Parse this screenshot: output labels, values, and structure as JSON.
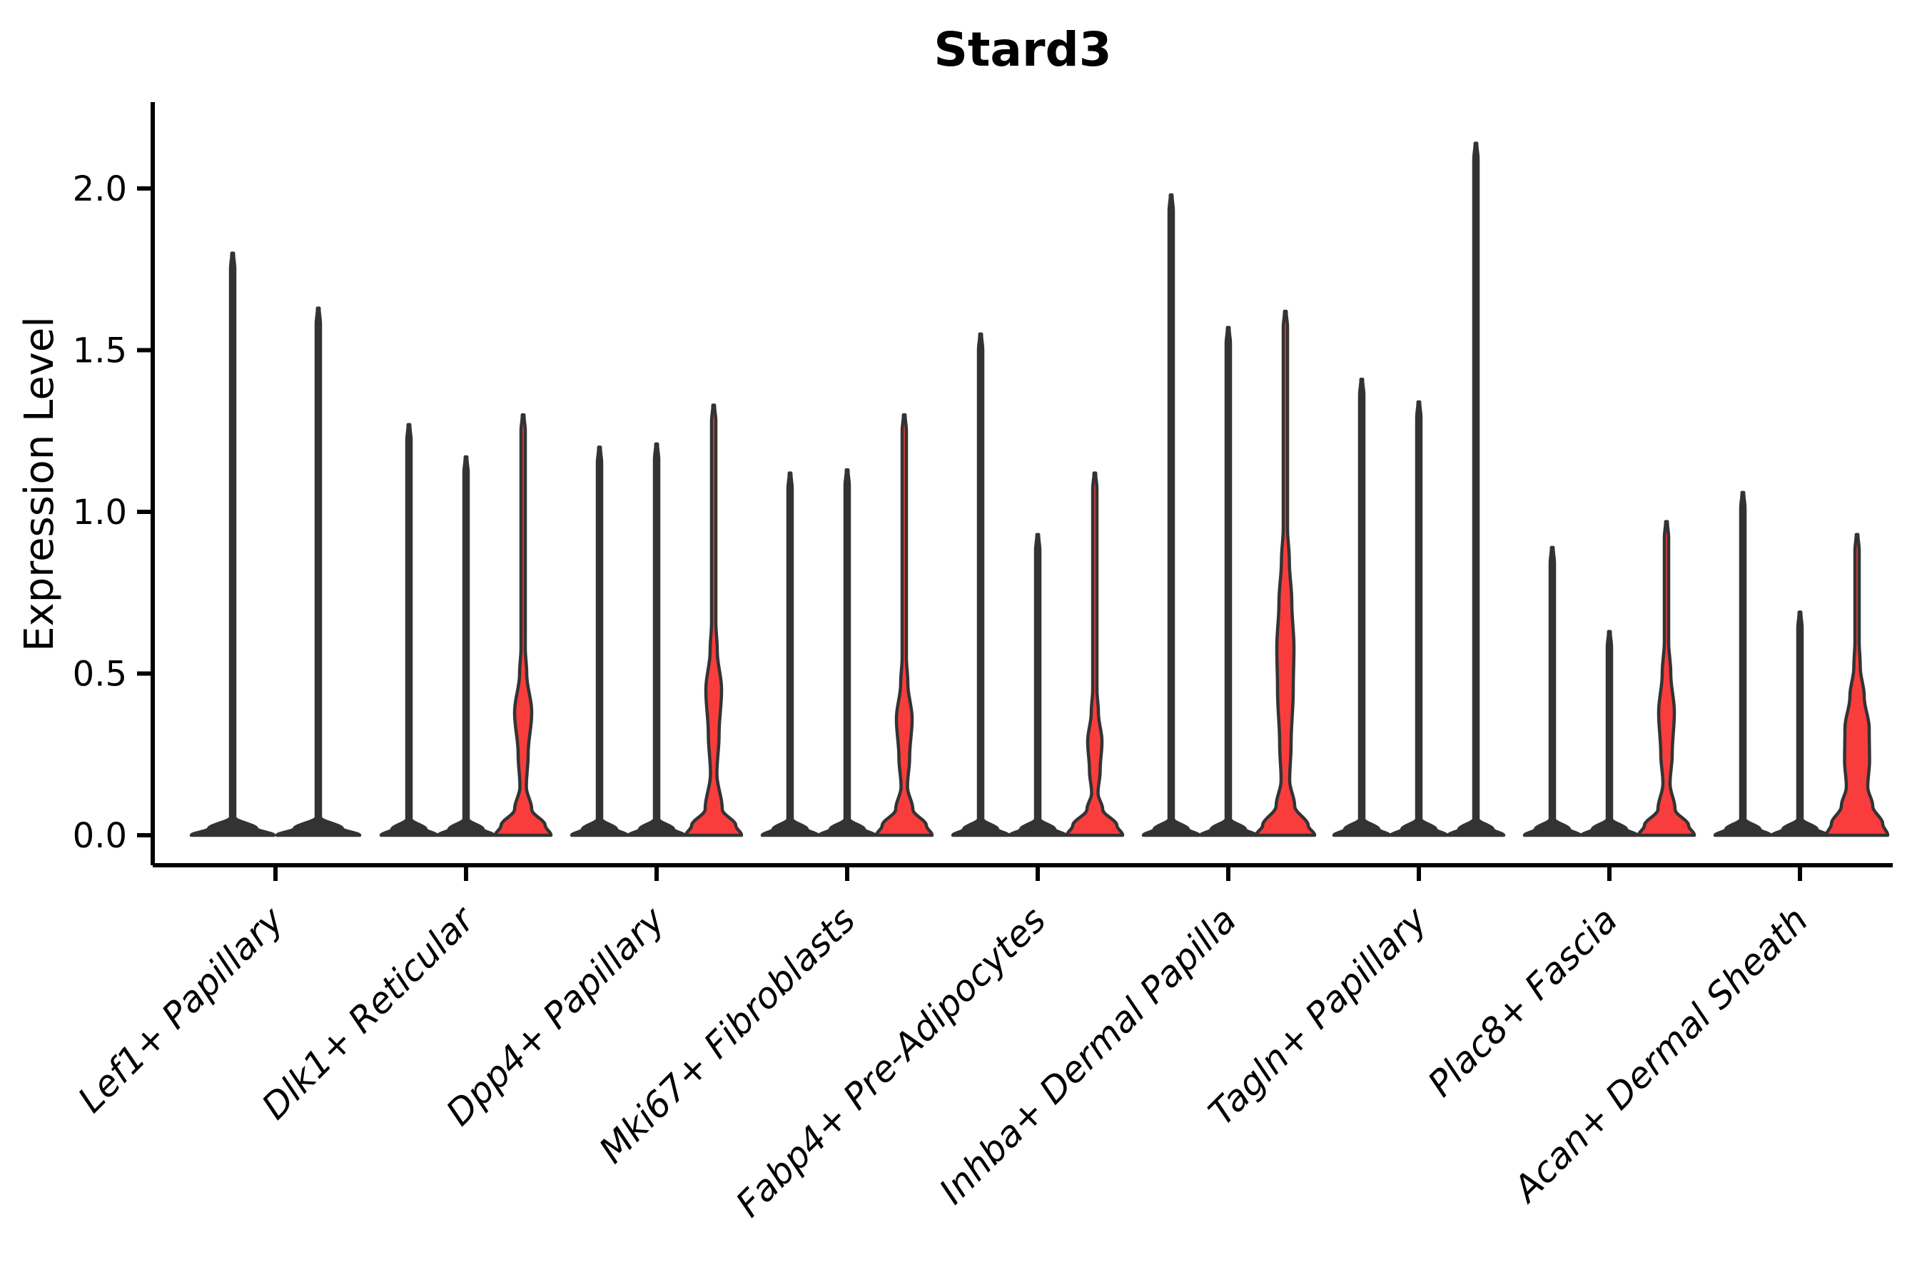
{
  "chart_data": {
    "type": "violin",
    "title": "Stard3",
    "ylabel": "Expression Level",
    "xlabel": "",
    "ylim": [
      -0.09,
      2.27
    ],
    "yticks": [
      "0.0",
      "0.5",
      "1.0",
      "1.5",
      "2.0"
    ],
    "ytick_values": [
      0.0,
      0.5,
      1.0,
      1.5,
      2.0
    ],
    "grid": false,
    "legend": null,
    "colors": {
      "violin_fill_red": "#f93d3d",
      "violin_edge": "#333333",
      "axis": "#000000",
      "background": "#ffffff"
    },
    "categories": [
      "Lef1+ Papillary",
      "Dlk1+ Reticular",
      "Dpp4+ Papillary",
      "Mki67+ Fibroblasts",
      "Fabp4+ Pre-Adipocytes",
      "Inhba+ Dermal Papilla",
      "Tagln+ Papillary",
      "Plac8+ Fascia",
      "Acan+ Dermal Sheath"
    ],
    "groups": [
      {
        "label": "Lef1+ Papillary",
        "violins": [
          {
            "top": 1.8,
            "fill": "dark",
            "outline": [
              [
                0,
                58
              ],
              [
                0.02,
                34
              ],
              [
                0.055,
                3
              ],
              [
                1.75,
                3
              ],
              [
                1.8,
                1.2
              ]
            ]
          },
          {
            "top": 1.63,
            "fill": "dark",
            "outline": [
              [
                0,
                58
              ],
              [
                0.02,
                34
              ],
              [
                0.055,
                3
              ],
              [
                1.58,
                3
              ],
              [
                1.63,
                1.2
              ]
            ]
          }
        ]
      },
      {
        "label": "Dlk1+ Reticular",
        "violins": [
          {
            "top": 1.27,
            "fill": "dark",
            "outline": [
              [
                0,
                39
              ],
              [
                0.018,
                24
              ],
              [
                0.05,
                3
              ],
              [
                1.22,
                3
              ],
              [
                1.27,
                1.2
              ]
            ]
          },
          {
            "top": 1.17,
            "fill": "dark",
            "outline": [
              [
                0,
                39
              ],
              [
                0.018,
                24
              ],
              [
                0.05,
                3
              ],
              [
                1.12,
                3
              ],
              [
                1.17,
                1.2
              ]
            ]
          },
          {
            "top": 1.3,
            "fill": "red",
            "outline": [
              [
                0,
                39
              ],
              [
                0.03,
                31
              ],
              [
                0.08,
                12
              ],
              [
                0.15,
                4.5
              ],
              [
                0.25,
                7
              ],
              [
                0.38,
                12
              ],
              [
                0.5,
                5
              ],
              [
                0.58,
                3
              ],
              [
                1.25,
                3
              ],
              [
                1.3,
                1.2
              ]
            ]
          }
        ]
      },
      {
        "label": "Dpp4+ Papillary",
        "violins": [
          {
            "top": 1.2,
            "fill": "dark",
            "outline": [
              [
                0,
                39
              ],
              [
                0.018,
                24
              ],
              [
                0.05,
                3
              ],
              [
                1.15,
                3
              ],
              [
                1.2,
                1.2
              ]
            ]
          },
          {
            "top": 1.21,
            "fill": "dark",
            "outline": [
              [
                0,
                39
              ],
              [
                0.018,
                24
              ],
              [
                0.05,
                3
              ],
              [
                1.16,
                3
              ],
              [
                1.21,
                1.2
              ]
            ]
          },
          {
            "top": 1.33,
            "fill": "red",
            "outline": [
              [
                0,
                39
              ],
              [
                0.03,
                31
              ],
              [
                0.08,
                12
              ],
              [
                0.19,
                4.5
              ],
              [
                0.31,
                7.5
              ],
              [
                0.45,
                11
              ],
              [
                0.57,
                5
              ],
              [
                0.66,
                3
              ],
              [
                1.28,
                3
              ],
              [
                1.33,
                1.2
              ]
            ]
          }
        ]
      },
      {
        "label": "Mki67+ Fibroblasts",
        "violins": [
          {
            "top": 1.12,
            "fill": "dark",
            "outline": [
              [
                0,
                39
              ],
              [
                0.018,
                24
              ],
              [
                0.05,
                3
              ],
              [
                1.07,
                3
              ],
              [
                1.12,
                1.2
              ]
            ]
          },
          {
            "top": 1.13,
            "fill": "dark",
            "outline": [
              [
                0,
                39
              ],
              [
                0.018,
                24
              ],
              [
                0.05,
                3
              ],
              [
                1.08,
                3
              ],
              [
                1.13,
                1.2
              ]
            ]
          },
          {
            "top": 1.3,
            "fill": "red",
            "outline": [
              [
                0,
                39
              ],
              [
                0.03,
                31
              ],
              [
                0.08,
                12
              ],
              [
                0.15,
                4.5
              ],
              [
                0.24,
                7.5
              ],
              [
                0.36,
                11
              ],
              [
                0.47,
                5
              ],
              [
                0.55,
                3
              ],
              [
                1.25,
                3
              ],
              [
                1.3,
                1.2
              ]
            ]
          }
        ]
      },
      {
        "label": "Fabp4+ Pre-Adipocytes",
        "violins": [
          {
            "top": 1.55,
            "fill": "dark",
            "outline": [
              [
                0,
                39
              ],
              [
                0.018,
                24
              ],
              [
                0.05,
                3
              ],
              [
                1.5,
                3
              ],
              [
                1.55,
                1.2
              ]
            ]
          },
          {
            "top": 0.93,
            "fill": "dark",
            "outline": [
              [
                0,
                39
              ],
              [
                0.018,
                24
              ],
              [
                0.05,
                3
              ],
              [
                0.88,
                3
              ],
              [
                0.93,
                1.2
              ]
            ]
          },
          {
            "top": 1.12,
            "fill": "red",
            "outline": [
              [
                0,
                39
              ],
              [
                0.03,
                31
              ],
              [
                0.08,
                11
              ],
              [
                0.13,
                4.5
              ],
              [
                0.2,
                7.5
              ],
              [
                0.29,
                10
              ],
              [
                0.38,
                5
              ],
              [
                0.45,
                3
              ],
              [
                1.07,
                3
              ],
              [
                1.12,
                1.2
              ]
            ]
          }
        ]
      },
      {
        "label": "Inhba+ Dermal Papilla",
        "violins": [
          {
            "top": 1.98,
            "fill": "dark",
            "outline": [
              [
                0,
                39
              ],
              [
                0.018,
                24
              ],
              [
                0.05,
                3
              ],
              [
                1.93,
                3
              ],
              [
                1.98,
                1.2
              ]
            ]
          },
          {
            "top": 1.57,
            "fill": "dark",
            "outline": [
              [
                0,
                39
              ],
              [
                0.018,
                24
              ],
              [
                0.05,
                3
              ],
              [
                1.52,
                3
              ],
              [
                1.57,
                1.2
              ]
            ]
          },
          {
            "top": 1.62,
            "fill": "red",
            "outline": [
              [
                0,
                41
              ],
              [
                0.03,
                32
              ],
              [
                0.09,
                13
              ],
              [
                0.17,
                6
              ],
              [
                0.28,
                8
              ],
              [
                0.45,
                11
              ],
              [
                0.58,
                12
              ],
              [
                0.72,
                9
              ],
              [
                0.85,
                5.5
              ],
              [
                0.95,
                3
              ],
              [
                1.57,
                3
              ],
              [
                1.62,
                1.2
              ]
            ]
          }
        ]
      },
      {
        "label": "Tagln+ Papillary",
        "violins": [
          {
            "top": 1.41,
            "fill": "dark",
            "outline": [
              [
                0,
                39
              ],
              [
                0.018,
                24
              ],
              [
                0.05,
                3
              ],
              [
                1.36,
                3
              ],
              [
                1.41,
                1.2
              ]
            ]
          },
          {
            "top": 1.34,
            "fill": "dark",
            "outline": [
              [
                0,
                39
              ],
              [
                0.018,
                24
              ],
              [
                0.05,
                3
              ],
              [
                1.29,
                3
              ],
              [
                1.34,
                1.2
              ]
            ]
          },
          {
            "top": 2.14,
            "fill": "dark",
            "outline": [
              [
                0,
                39
              ],
              [
                0.018,
                24
              ],
              [
                0.05,
                3
              ],
              [
                2.09,
                3
              ],
              [
                2.14,
                1.2
              ]
            ]
          }
        ]
      },
      {
        "label": "Plac8+ Fascia",
        "violins": [
          {
            "top": 0.89,
            "fill": "dark",
            "outline": [
              [
                0,
                39
              ],
              [
                0.018,
                24
              ],
              [
                0.05,
                3
              ],
              [
                0.84,
                3
              ],
              [
                0.89,
                1.2
              ]
            ]
          },
          {
            "top": 0.63,
            "fill": "dark",
            "outline": [
              [
                0,
                39
              ],
              [
                0.018,
                24
              ],
              [
                0.05,
                3
              ],
              [
                0.58,
                3
              ],
              [
                0.63,
                1.2
              ]
            ]
          },
          {
            "top": 0.97,
            "fill": "red",
            "outline": [
              [
                0,
                39
              ],
              [
                0.03,
                31
              ],
              [
                0.08,
                12
              ],
              [
                0.16,
                5
              ],
              [
                0.25,
                8
              ],
              [
                0.38,
                11
              ],
              [
                0.5,
                6
              ],
              [
                0.6,
                3
              ],
              [
                0.92,
                3
              ],
              [
                0.97,
                1.2
              ]
            ]
          }
        ]
      },
      {
        "label": "Acan+ Dermal Sheath",
        "violins": [
          {
            "top": 1.06,
            "fill": "dark",
            "outline": [
              [
                0,
                39
              ],
              [
                0.018,
                24
              ],
              [
                0.05,
                3
              ],
              [
                1.01,
                3
              ],
              [
                1.06,
                1.2
              ]
            ]
          },
          {
            "top": 0.69,
            "fill": "dark",
            "outline": [
              [
                0,
                39
              ],
              [
                0.018,
                24
              ],
              [
                0.05,
                3
              ],
              [
                0.64,
                3
              ],
              [
                0.69,
                1.2
              ]
            ]
          },
          {
            "top": 0.93,
            "fill": "red",
            "outline": [
              [
                0,
                43
              ],
              [
                0.035,
                36
              ],
              [
                0.09,
                22
              ],
              [
                0.15,
                15
              ],
              [
                0.23,
                17.5
              ],
              [
                0.33,
                17
              ],
              [
                0.43,
                10
              ],
              [
                0.52,
                4.5
              ],
              [
                0.6,
                3
              ],
              [
                0.88,
                3
              ],
              [
                0.93,
                1.2
              ]
            ]
          }
        ]
      }
    ]
  }
}
